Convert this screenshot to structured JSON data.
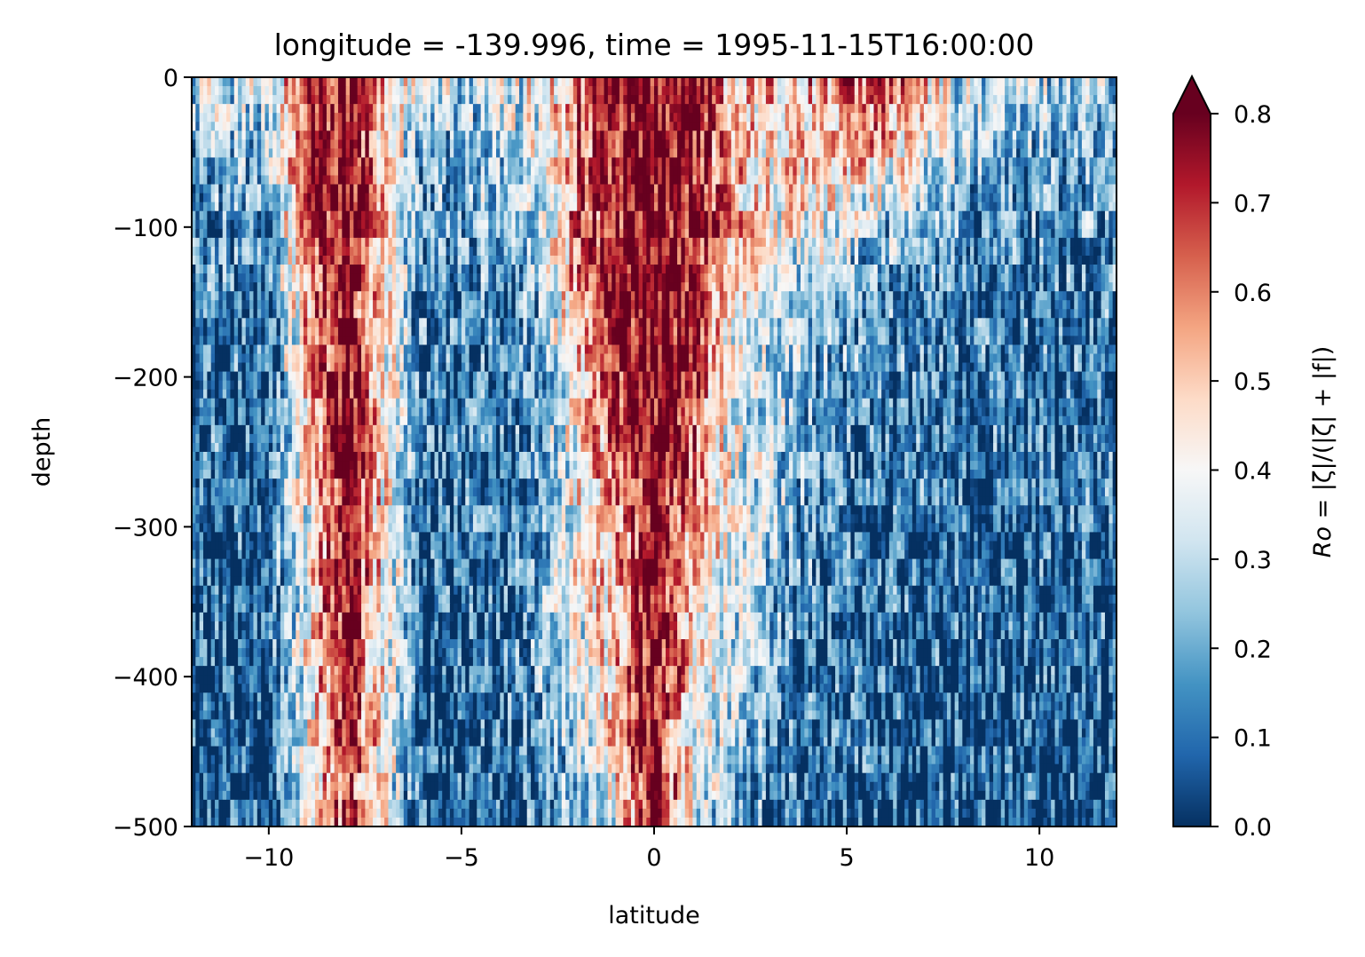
{
  "chart_data": {
    "type": "heatmap",
    "title": "longitude = -139.996, time = 1995-11-15T16:00:00",
    "xlabel": "latitude",
    "ylabel": "depth",
    "xlim": [
      -12,
      12
    ],
    "ylim": [
      -500,
      0
    ],
    "x_ticks": [
      -10,
      -5,
      0,
      5,
      10
    ],
    "x_tick_labels": [
      "−10",
      "−5",
      "0",
      "5",
      "10"
    ],
    "y_ticks": [
      0,
      -100,
      -200,
      -300,
      -400,
      -500
    ],
    "y_tick_labels": [
      "0",
      "−100",
      "−200",
      "−300",
      "−400",
      "−500"
    ],
    "colorbar": {
      "label": "Ro = |ζ|/(|ζ| + |f|)",
      "label_var": "Ro",
      "label_expr": " = |ζ|/(|ζ| + |f|)",
      "range": [
        0.0,
        0.8
      ],
      "extend": "max",
      "colormap": "RdBu_r",
      "ticks": [
        0.0,
        0.1,
        0.2,
        0.3,
        0.4,
        0.5,
        0.6,
        0.7,
        0.8
      ],
      "tick_labels": [
        "0.0",
        "0.1",
        "0.2",
        "0.3",
        "0.4",
        "0.5",
        "0.6",
        "0.7",
        "0.8"
      ]
    },
    "colormap_stops": [
      "#053061",
      "#2166ac",
      "#4393c3",
      "#92c5de",
      "#d1e5f0",
      "#f7f7f7",
      "#fddbc7",
      "#f4a582",
      "#d6604d",
      "#b2182b",
      "#67001f"
    ],
    "field_description_values": {
      "latitude_grid": [
        -12,
        -10,
        -9,
        -8,
        -6,
        -4,
        -3,
        -2,
        -1,
        0,
        1,
        2,
        3,
        4,
        6,
        8,
        10,
        12
      ],
      "depth_grid": [
        0,
        -50,
        -100,
        -150,
        -200,
        -300,
        -400,
        -500
      ],
      "approx_ro": [
        [
          0.35,
          0.3,
          0.75,
          0.8,
          0.3,
          0.3,
          0.4,
          0.6,
          0.8,
          0.8,
          0.8,
          0.55,
          0.5,
          0.55,
          0.7,
          0.3,
          0.3,
          0.3
        ],
        [
          0.2,
          0.25,
          0.7,
          0.8,
          0.2,
          0.25,
          0.35,
          0.6,
          0.75,
          0.8,
          0.75,
          0.55,
          0.45,
          0.5,
          0.5,
          0.25,
          0.2,
          0.2
        ],
        [
          0.15,
          0.15,
          0.65,
          0.8,
          0.15,
          0.2,
          0.25,
          0.65,
          0.75,
          0.8,
          0.75,
          0.55,
          0.4,
          0.4,
          0.25,
          0.15,
          0.15,
          0.15
        ],
        [
          0.12,
          0.12,
          0.55,
          0.8,
          0.12,
          0.15,
          0.2,
          0.55,
          0.8,
          0.8,
          0.8,
          0.45,
          0.35,
          0.25,
          0.15,
          0.12,
          0.12,
          0.12
        ],
        [
          0.1,
          0.1,
          0.5,
          0.8,
          0.1,
          0.12,
          0.15,
          0.45,
          0.7,
          0.8,
          0.7,
          0.4,
          0.3,
          0.2,
          0.12,
          0.1,
          0.1,
          0.1
        ],
        [
          0.08,
          0.08,
          0.4,
          0.8,
          0.08,
          0.1,
          0.2,
          0.4,
          0.55,
          0.8,
          0.55,
          0.35,
          0.25,
          0.15,
          0.1,
          0.08,
          0.08,
          0.08
        ],
        [
          0.06,
          0.06,
          0.4,
          0.75,
          0.06,
          0.08,
          0.18,
          0.35,
          0.5,
          0.8,
          0.45,
          0.3,
          0.2,
          0.1,
          0.08,
          0.06,
          0.06,
          0.06
        ],
        [
          0.05,
          0.05,
          0.35,
          0.7,
          0.05,
          0.06,
          0.1,
          0.2,
          0.4,
          0.8,
          0.35,
          0.2,
          0.12,
          0.08,
          0.06,
          0.05,
          0.05,
          0.05
        ]
      ]
    }
  }
}
